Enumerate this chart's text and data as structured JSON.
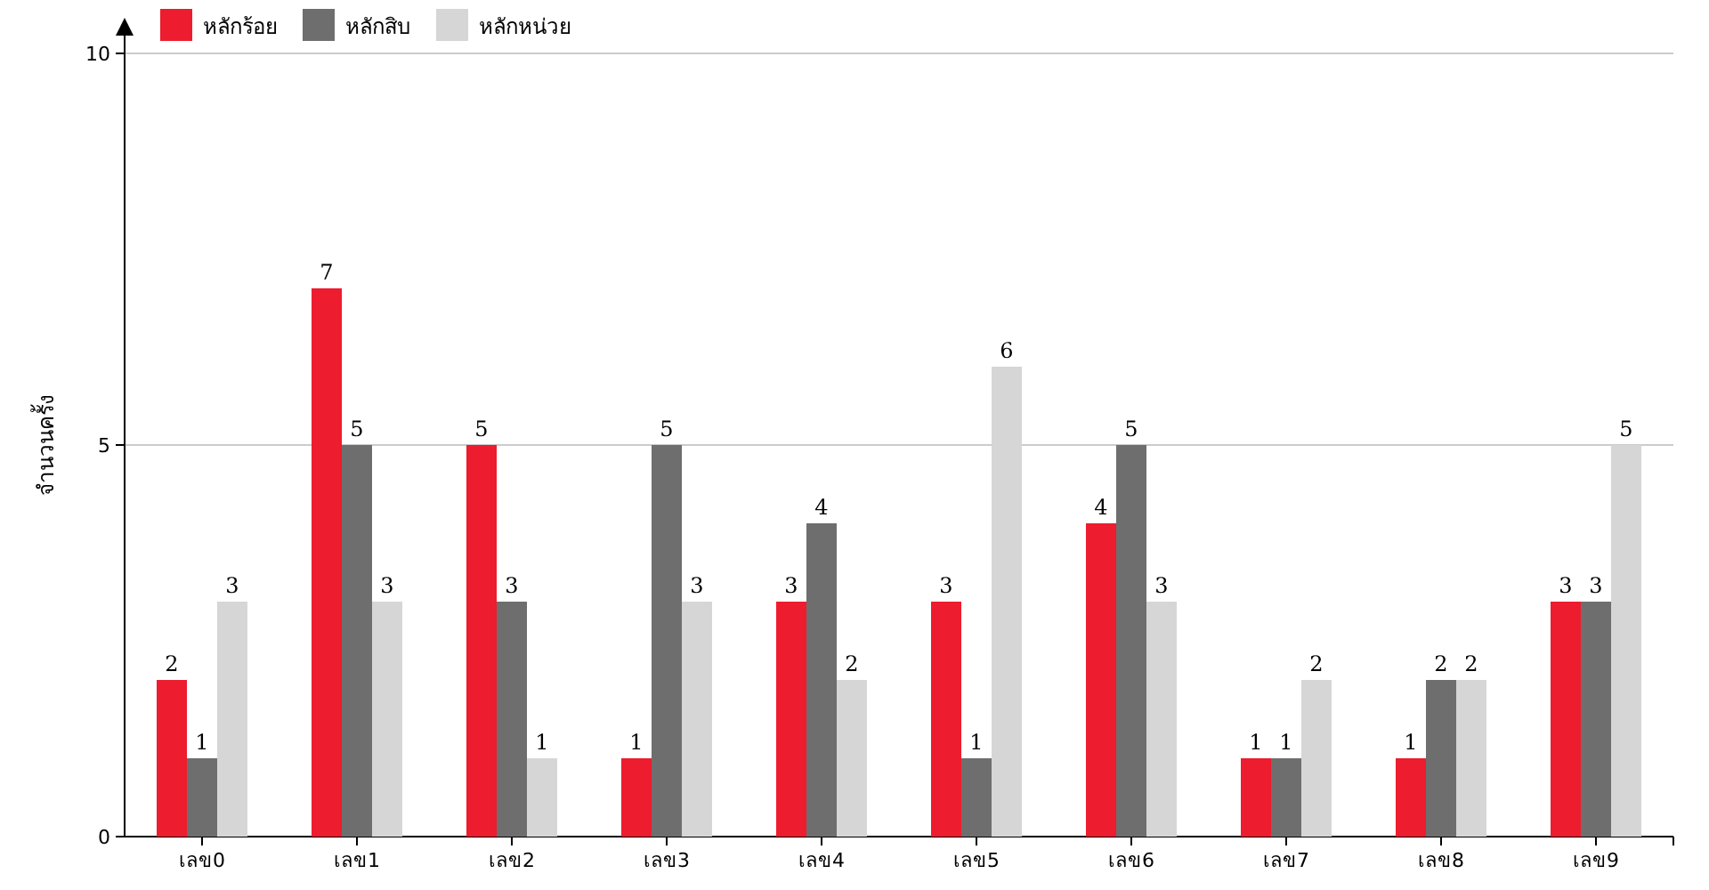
{
  "chart_data": {
    "type": "bar",
    "ylabel": "จำนวนครั้ง",
    "categories": [
      "เลข0",
      "เลข1",
      "เลข2",
      "เลข3",
      "เลข4",
      "เลข5",
      "เลข6",
      "เลข7",
      "เลข8",
      "เลข9"
    ],
    "series": [
      {
        "name": "หลักร้อย",
        "color": "#ed1c2e",
        "values": [
          2,
          7,
          5,
          1,
          3,
          3,
          4,
          1,
          1,
          3
        ]
      },
      {
        "name": "หลักสิบ",
        "color": "#6e6e6e",
        "values": [
          1,
          5,
          3,
          5,
          4,
          1,
          5,
          1,
          2,
          3
        ]
      },
      {
        "name": "หลักหน่วย",
        "color": "#d6d6d6",
        "values": [
          3,
          3,
          1,
          3,
          2,
          6,
          3,
          2,
          2,
          5
        ]
      }
    ],
    "ylim": [
      0,
      10
    ],
    "yticks": [
      0,
      5,
      10
    ],
    "grid": "y",
    "legend": "top left",
    "data_labels": true
  }
}
